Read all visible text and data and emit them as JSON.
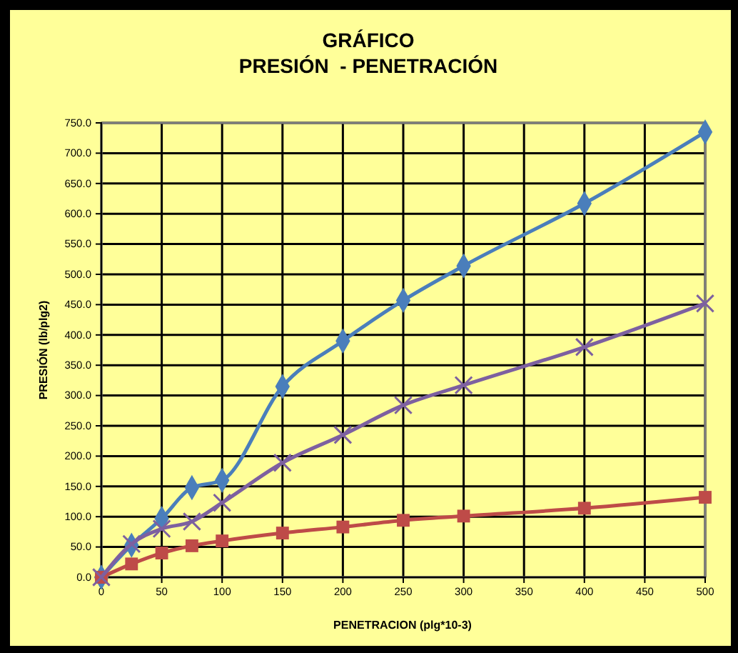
{
  "chart_data": {
    "type": "line",
    "title": "GRÁFICO",
    "subtitle": "PRESIÓN  - PENETRACIÓN",
    "xlabel": "PENETRACION (plg*10-3)",
    "ylabel": "PRESIÓN (lb/plg2)",
    "x": [
      0,
      25,
      50,
      75,
      100,
      150,
      200,
      250,
      300,
      400,
      500
    ],
    "series": [
      {
        "color": "#4a7ebb",
        "marker": "diamond",
        "values": [
          0,
          53,
          97,
          148,
          160,
          315,
          390,
          457,
          514,
          617,
          735
        ]
      },
      {
        "color": "#be4b48",
        "marker": "square",
        "values": [
          0,
          22,
          40,
          52,
          60,
          73,
          83,
          94,
          101,
          114,
          132
        ]
      },
      {
        "color": "#7d60a0",
        "marker": "cross",
        "values": [
          0,
          55,
          80,
          92,
          123,
          189,
          235,
          284,
          317,
          380,
          452
        ]
      }
    ],
    "xlim": [
      0,
      500
    ],
    "xticks": [
      0,
      50,
      100,
      150,
      200,
      250,
      300,
      350,
      400,
      450,
      500
    ],
    "ylim": [
      0,
      750
    ],
    "yticks": [
      {
        "value": 0,
        "label": "0.0"
      },
      {
        "value": 50,
        "label": "50.0"
      },
      {
        "value": 100,
        "label": "100.0"
      },
      {
        "value": 150,
        "label": "150.0"
      },
      {
        "value": 200,
        "label": "200.0"
      },
      {
        "value": 250,
        "label": "250.0"
      },
      {
        "value": 300,
        "label": "300.0"
      },
      {
        "value": 350,
        "label": "350.0"
      },
      {
        "value": 400,
        "label": "400.0"
      },
      {
        "value": 450,
        "label": "450.0"
      },
      {
        "value": 500,
        "label": "500.0"
      },
      {
        "value": 550,
        "label": "550.0"
      },
      {
        "value": 600,
        "label": "600.0"
      },
      {
        "value": 650,
        "label": "650.0"
      },
      {
        "value": 700,
        "label": "700.0"
      },
      {
        "value": 750,
        "label": "750.0"
      }
    ],
    "grid": true
  }
}
